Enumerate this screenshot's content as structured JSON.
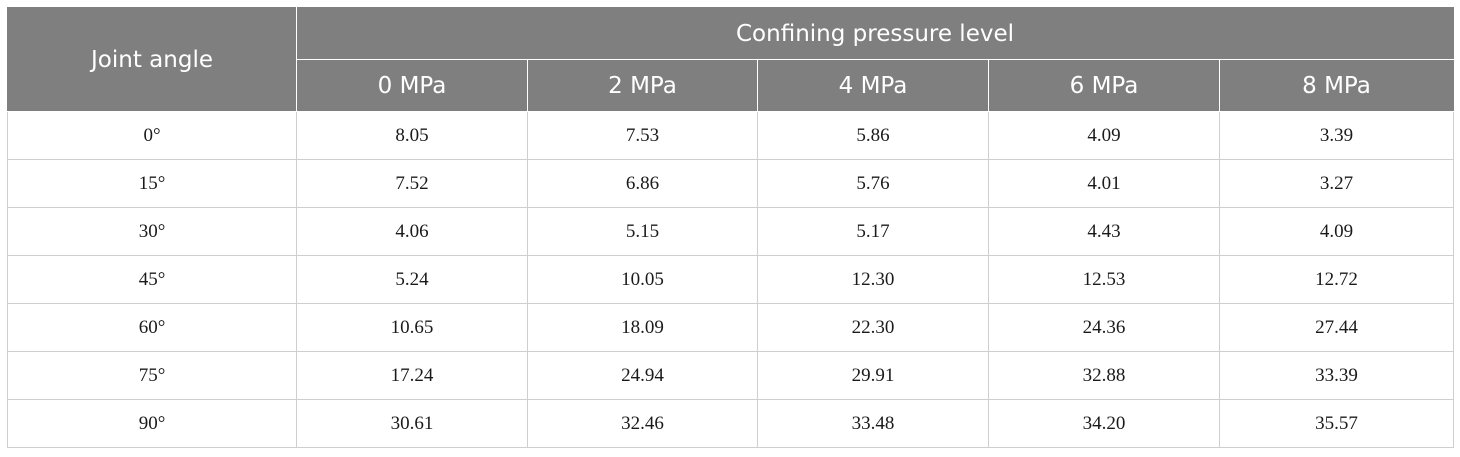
{
  "table": {
    "row_header": "Joint angle",
    "group_header": "Confining pressure level",
    "columns": [
      "0 MPa",
      "2 MPa",
      "4 MPa",
      "6 MPa",
      "8 MPa"
    ],
    "rows": [
      {
        "angle": "0°",
        "values": [
          "8.05",
          "7.53",
          "5.86",
          "4.09",
          "3.39"
        ]
      },
      {
        "angle": "15°",
        "values": [
          "7.52",
          "6.86",
          "5.76",
          "4.01",
          "3.27"
        ]
      },
      {
        "angle": "30°",
        "values": [
          "4.06",
          "5.15",
          "5.17",
          "4.43",
          "4.09"
        ]
      },
      {
        "angle": "45°",
        "values": [
          "5.24",
          "10.05",
          "12.30",
          "12.53",
          "12.72"
        ]
      },
      {
        "angle": "60°",
        "values": [
          "10.65",
          "18.09",
          "22.30",
          "24.36",
          "27.44"
        ]
      },
      {
        "angle": "75°",
        "values": [
          "17.24",
          "24.94",
          "29.91",
          "32.88",
          "33.39"
        ]
      },
      {
        "angle": "90°",
        "values": [
          "30.61",
          "32.46",
          "33.48",
          "34.20",
          "35.57"
        ]
      }
    ]
  }
}
